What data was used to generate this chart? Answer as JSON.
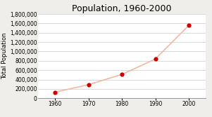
{
  "title": "Population, 1960-2000",
  "xlabel": "",
  "ylabel": "Total Population",
  "years": [
    1960,
    1970,
    1980,
    1990,
    2000
  ],
  "population": [
    130000,
    290000,
    510000,
    840000,
    1560000
  ],
  "ylim": [
    0,
    1800000
  ],
  "yticks": [
    0,
    200000,
    400000,
    600000,
    800000,
    1000000,
    1200000,
    1400000,
    1600000,
    1800000
  ],
  "xticks": [
    1960,
    1970,
    1980,
    1990,
    2000
  ],
  "line_color": "#f4b8a0",
  "marker_color": "#cc0000",
  "background_color": "#f0eeea",
  "plot_bg_color": "#ffffff",
  "title_fontsize": 9,
  "label_fontsize": 6,
  "tick_fontsize": 5.5
}
